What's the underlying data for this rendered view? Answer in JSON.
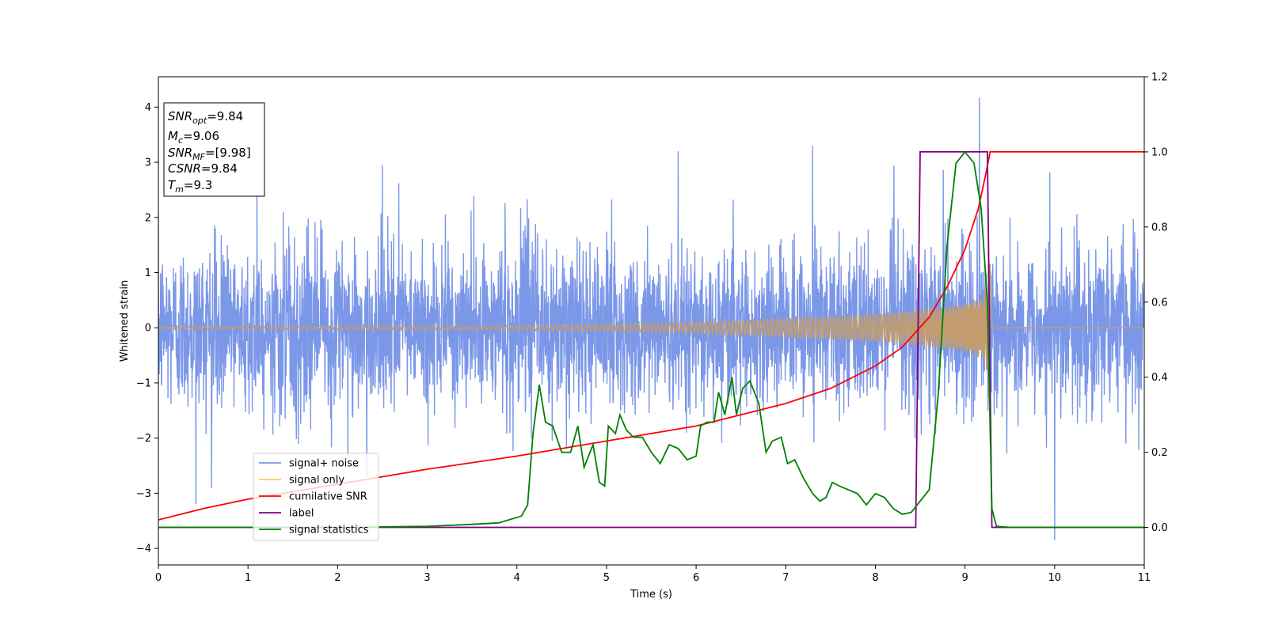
{
  "chart_data": {
    "type": "line",
    "title": "",
    "xlabel": "Time (s)",
    "ylabel": "Whitened strain",
    "xlim": [
      0,
      11
    ],
    "ylim_left": [
      -4.3,
      4.55
    ],
    "ylim_right": [
      -0.1,
      1.2
    ],
    "x_ticks": [
      0,
      1,
      2,
      3,
      4,
      5,
      6,
      7,
      8,
      9,
      10,
      11
    ],
    "y_left_ticks": [
      -4,
      -3,
      -2,
      -1,
      0,
      1,
      2,
      3,
      4
    ],
    "y_right_ticks": [
      0.0,
      0.2,
      0.4,
      0.6,
      0.8,
      1.0,
      1.2
    ],
    "grid": false,
    "legend_position": "lower-left",
    "info_box": {
      "snr_opt": "=9.84",
      "mc": "=9.06",
      "snr_mf": "=[9.98]",
      "csnr": "=9.84",
      "tm": "=9.3"
    },
    "series": [
      {
        "name": "signal+ noise",
        "axis": "left",
        "color": "#7b97e8",
        "noise_sigma": 0.75,
        "x_range": [
          0,
          11
        ],
        "extremes": [
          [
            9.16,
            4.17
          ],
          [
            10.0,
            -3.85
          ],
          [
            0.42,
            -3.2
          ],
          [
            1.1,
            2.85
          ],
          [
            7.3,
            3.3
          ],
          [
            2.5,
            2.95
          ],
          [
            5.8,
            3.2
          ]
        ]
      },
      {
        "name": "signal only",
        "axis": "left",
        "color": "#c39d6f",
        "envelope": {
          "t_merge": 9.28,
          "amp_at": [
            [
              0,
              0.03
            ],
            [
              4,
              0.04
            ],
            [
              6,
              0.1
            ],
            [
              8,
              0.25
            ],
            [
              8.5,
              0.33
            ],
            [
              9.0,
              0.43
            ],
            [
              9.2,
              0.55
            ],
            [
              9.26,
              1.4
            ]
          ]
        }
      },
      {
        "name": "cumilative SNR",
        "axis": "right",
        "color": "#ff0000",
        "points": [
          [
            0,
            0.02
          ],
          [
            0.5,
            0.05
          ],
          [
            1,
            0.075
          ],
          [
            2,
            0.115
          ],
          [
            3,
            0.155
          ],
          [
            4,
            0.19
          ],
          [
            5,
            0.23
          ],
          [
            6,
            0.27
          ],
          [
            7,
            0.33
          ],
          [
            7.5,
            0.37
          ],
          [
            8,
            0.43
          ],
          [
            8.3,
            0.48
          ],
          [
            8.6,
            0.56
          ],
          [
            8.8,
            0.64
          ],
          [
            9.0,
            0.74
          ],
          [
            9.15,
            0.85
          ],
          [
            9.24,
            0.95
          ],
          [
            9.28,
            1.0
          ],
          [
            11,
            1.0
          ]
        ]
      },
      {
        "name": "label",
        "axis": "right",
        "color": "#800080",
        "points": [
          [
            0,
            0.0
          ],
          [
            8.45,
            0.0
          ],
          [
            8.5,
            1.0
          ],
          [
            9.25,
            1.0
          ],
          [
            9.3,
            0.0
          ],
          [
            11,
            0.0
          ]
        ]
      },
      {
        "name": "signal statistics",
        "axis": "right",
        "color": "#008000",
        "points": [
          [
            0,
            0.0
          ],
          [
            1,
            0.0
          ],
          [
            2,
            0.0
          ],
          [
            3,
            0.003
          ],
          [
            3.5,
            0.008
          ],
          [
            3.8,
            0.012
          ],
          [
            4.05,
            0.03
          ],
          [
            4.12,
            0.06
          ],
          [
            4.18,
            0.25
          ],
          [
            4.25,
            0.38
          ],
          [
            4.32,
            0.28
          ],
          [
            4.4,
            0.27
          ],
          [
            4.5,
            0.2
          ],
          [
            4.6,
            0.2
          ],
          [
            4.68,
            0.27
          ],
          [
            4.75,
            0.16
          ],
          [
            4.85,
            0.22
          ],
          [
            4.92,
            0.12
          ],
          [
            4.98,
            0.11
          ],
          [
            5.02,
            0.27
          ],
          [
            5.1,
            0.25
          ],
          [
            5.15,
            0.3
          ],
          [
            5.22,
            0.26
          ],
          [
            5.3,
            0.24
          ],
          [
            5.4,
            0.24
          ],
          [
            5.5,
            0.2
          ],
          [
            5.6,
            0.17
          ],
          [
            5.7,
            0.22
          ],
          [
            5.8,
            0.21
          ],
          [
            5.9,
            0.18
          ],
          [
            6.0,
            0.19
          ],
          [
            6.05,
            0.27
          ],
          [
            6.12,
            0.28
          ],
          [
            6.2,
            0.28
          ],
          [
            6.25,
            0.36
          ],
          [
            6.32,
            0.3
          ],
          [
            6.4,
            0.4
          ],
          [
            6.45,
            0.3
          ],
          [
            6.52,
            0.37
          ],
          [
            6.6,
            0.39
          ],
          [
            6.7,
            0.33
          ],
          [
            6.78,
            0.2
          ],
          [
            6.85,
            0.23
          ],
          [
            6.95,
            0.24
          ],
          [
            7.02,
            0.17
          ],
          [
            7.1,
            0.18
          ],
          [
            7.2,
            0.13
          ],
          [
            7.3,
            0.09
          ],
          [
            7.38,
            0.07
          ],
          [
            7.45,
            0.08
          ],
          [
            7.52,
            0.12
          ],
          [
            7.6,
            0.11
          ],
          [
            7.7,
            0.1
          ],
          [
            7.8,
            0.09
          ],
          [
            7.9,
            0.06
          ],
          [
            8.0,
            0.09
          ],
          [
            8.1,
            0.08
          ],
          [
            8.2,
            0.05
          ],
          [
            8.3,
            0.035
          ],
          [
            8.4,
            0.04
          ],
          [
            8.5,
            0.07
          ],
          [
            8.6,
            0.1
          ],
          [
            8.7,
            0.35
          ],
          [
            8.8,
            0.75
          ],
          [
            8.9,
            0.97
          ],
          [
            9.0,
            1.0
          ],
          [
            9.1,
            0.97
          ],
          [
            9.18,
            0.85
          ],
          [
            9.25,
            0.6
          ],
          [
            9.3,
            0.05
          ],
          [
            9.35,
            0.003
          ],
          [
            9.5,
            0.0
          ],
          [
            11,
            0.0
          ]
        ]
      }
    ]
  }
}
